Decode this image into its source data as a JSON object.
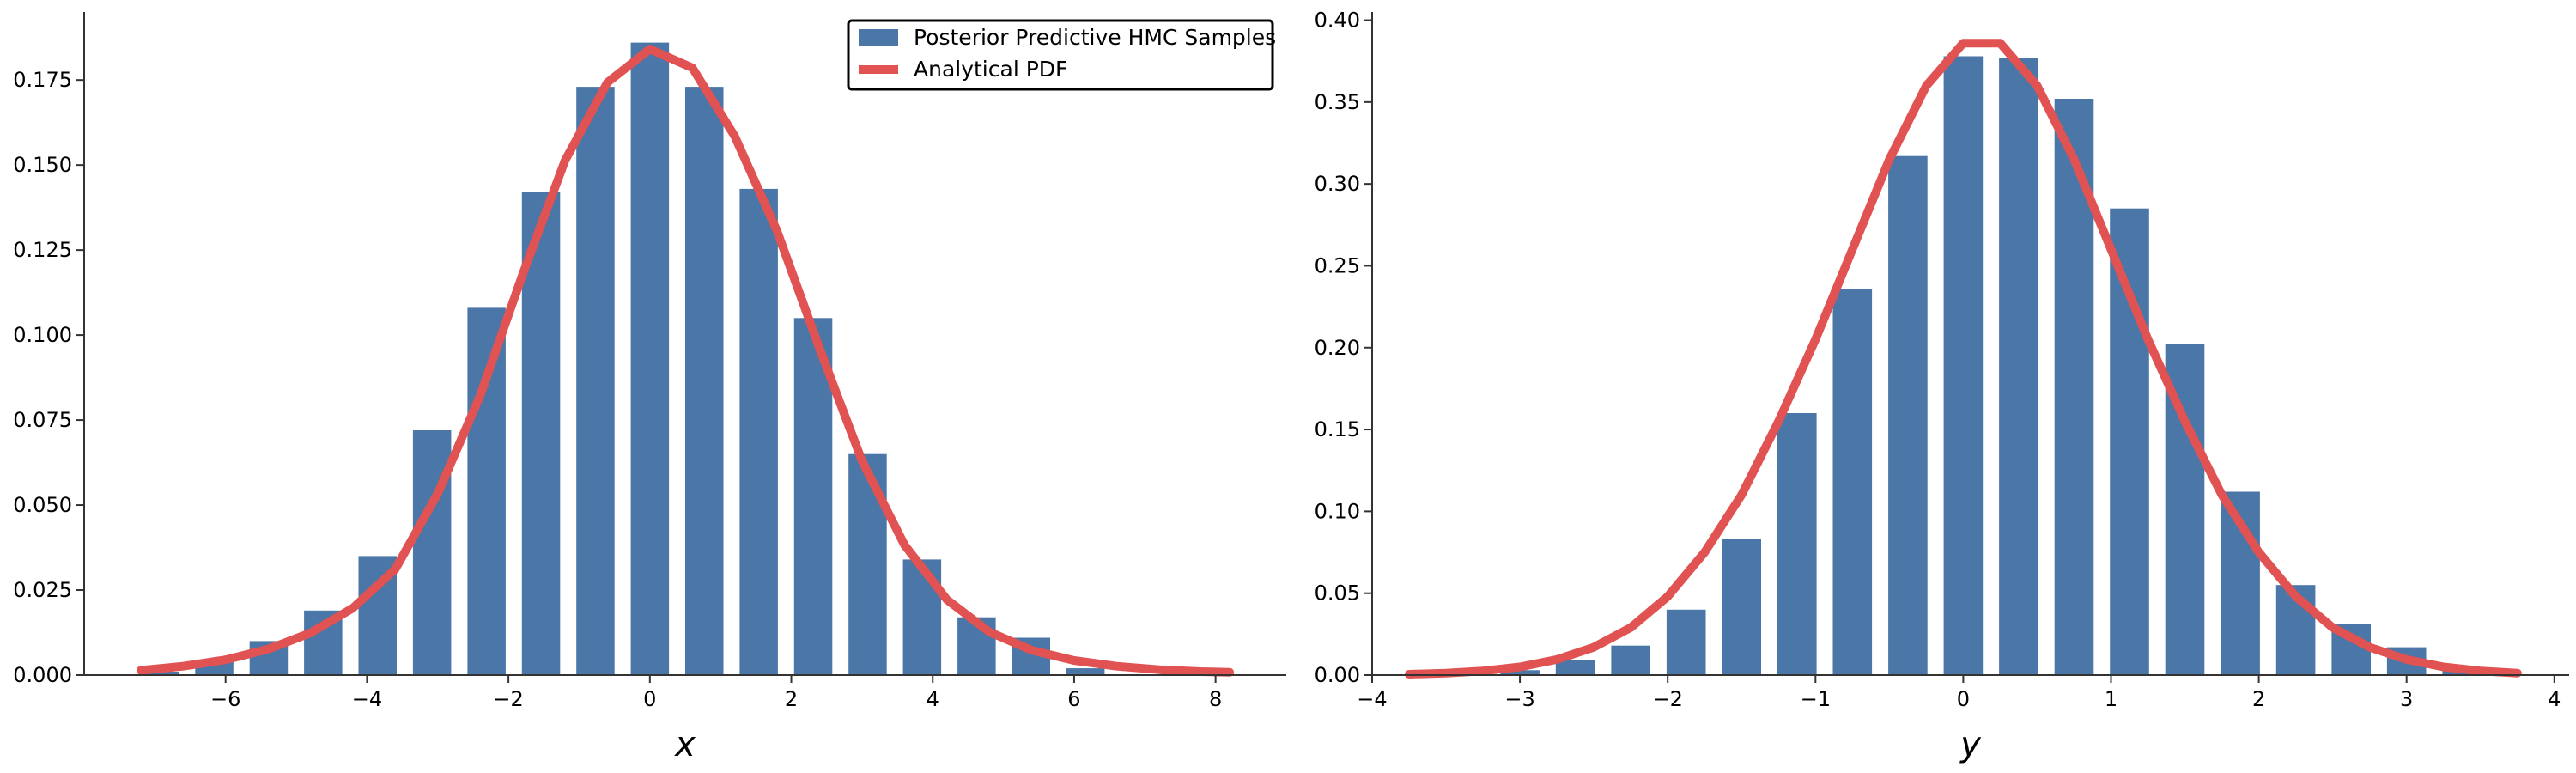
{
  "legend": {
    "placement": "upper-right of left panel",
    "entries": [
      {
        "label": "Posterior Predictive HMC Samples",
        "kind": "bar",
        "color": "#4a76a8"
      },
      {
        "label": "Analytical PDF",
        "kind": "line",
        "color": "#e15252"
      }
    ]
  },
  "colors": {
    "bars": "#4a76a8",
    "curve": "#e15252",
    "axis": "#333333"
  },
  "chart_data": [
    {
      "type": "bar",
      "title": "",
      "xlabel": "x",
      "ylabel": "",
      "grid": false,
      "xlim": [
        -8.0,
        9.0
      ],
      "ylim": [
        0,
        0.195
      ],
      "xticks": [
        -6,
        -4,
        -2,
        0,
        2,
        4,
        6,
        8
      ],
      "xtick_labels": [
        "−6",
        "−4",
        "−2",
        "0",
        "2",
        "4",
        "6",
        "8"
      ],
      "yticks": [
        0,
        0.025,
        0.05,
        0.075,
        0.1,
        0.125,
        0.15,
        0.175
      ],
      "ytick_labels": [
        "0.000",
        "0.025",
        "0.050",
        "0.075",
        "0.100",
        "0.125",
        "0.150",
        "0.175"
      ],
      "bin_width": 0.77,
      "bar_width": 0.54,
      "series": [
        {
          "name": "Posterior Predictive HMC Samples",
          "kind": "histogram",
          "x": [
            -7.7,
            -6.93,
            -6.16,
            -5.39,
            -4.62,
            -3.85,
            -3.08,
            -2.31,
            -1.54,
            -0.77,
            0.0,
            0.77,
            1.54,
            2.31,
            3.08,
            3.85,
            4.62,
            5.39,
            6.16,
            6.93
          ],
          "values": [
            0.0,
            0.001,
            0.004,
            0.01,
            0.019,
            0.035,
            0.072,
            0.108,
            0.142,
            0.173,
            0.186,
            0.173,
            0.143,
            0.105,
            0.065,
            0.034,
            0.017,
            0.011,
            0.002,
            0.0
          ]
        },
        {
          "name": "Analytical PDF",
          "kind": "line",
          "x": [
            -7.2,
            -6.6,
            -6.0,
            -5.4,
            -4.8,
            -4.2,
            -3.6,
            -3.0,
            -2.4,
            -1.8,
            -1.2,
            -0.6,
            0.0,
            0.6,
            1.2,
            1.8,
            2.4,
            3.0,
            3.6,
            4.2,
            4.8,
            5.4,
            6.0,
            6.6,
            7.2,
            7.8,
            8.2
          ],
          "values": [
            0.0014,
            0.0026,
            0.0045,
            0.0076,
            0.0124,
            0.0197,
            0.0312,
            0.0534,
            0.0822,
            0.1178,
            0.1513,
            0.1743,
            0.1841,
            0.1786,
            0.1585,
            0.1305,
            0.096,
            0.063,
            0.0383,
            0.0222,
            0.0127,
            0.0073,
            0.0043,
            0.0026,
            0.0016,
            0.001,
            0.0008
          ]
        }
      ]
    },
    {
      "type": "bar",
      "title": "",
      "xlabel": "y",
      "ylabel": "",
      "grid": false,
      "xlim": [
        -4.0,
        4.1
      ],
      "ylim": [
        0,
        0.405
      ],
      "xticks": [
        -4,
        -3,
        -2,
        -1,
        0,
        1,
        2,
        3,
        4
      ],
      "xtick_labels": [
        "−4",
        "−3",
        "−2",
        "−1",
        "0",
        "1",
        "2",
        "3",
        "4"
      ],
      "yticks": [
        0,
        0.05,
        0.1,
        0.15,
        0.2,
        0.25,
        0.3,
        0.35,
        0.4
      ],
      "ytick_labels": [
        "0.00",
        "0.05",
        "0.10",
        "0.15",
        "0.20",
        "0.25",
        "0.30",
        "0.35",
        "0.40"
      ],
      "bin_width": 0.375,
      "bar_width": 0.265,
      "series": [
        {
          "name": "Posterior Predictive HMC Samples",
          "kind": "histogram",
          "x": [
            -3.0,
            -2.625,
            -2.25,
            -1.875,
            -1.5,
            -1.125,
            -0.75,
            -0.375,
            0.0,
            0.375,
            0.75,
            1.125,
            1.5,
            1.875,
            2.25,
            2.625,
            3.0,
            3.375
          ],
          "values": [
            0.003,
            0.009,
            0.018,
            0.04,
            0.083,
            0.16,
            0.236,
            0.317,
            0.378,
            0.377,
            0.352,
            0.285,
            0.202,
            0.112,
            0.055,
            0.031,
            0.017,
            0.005
          ]
        },
        {
          "name": "Analytical PDF",
          "kind": "line",
          "x": [
            -3.75,
            -3.5,
            -3.25,
            -3.0,
            -2.75,
            -2.5,
            -2.25,
            -2.0,
            -1.75,
            -1.5,
            -1.25,
            -1.0,
            -0.75,
            -0.5,
            -0.25,
            0.0,
            0.25,
            0.5,
            0.75,
            1.0,
            1.25,
            1.5,
            1.75,
            2.0,
            2.25,
            2.5,
            2.75,
            3.0,
            3.25,
            3.5,
            3.75
          ],
          "values": [
            0.0005,
            0.0012,
            0.0025,
            0.005,
            0.0095,
            0.017,
            0.029,
            0.048,
            0.075,
            0.11,
            0.155,
            0.205,
            0.26,
            0.315,
            0.36,
            0.386,
            0.386,
            0.36,
            0.315,
            0.26,
            0.205,
            0.155,
            0.11,
            0.075,
            0.048,
            0.029,
            0.017,
            0.0095,
            0.005,
            0.0025,
            0.0012
          ]
        }
      ]
    }
  ]
}
